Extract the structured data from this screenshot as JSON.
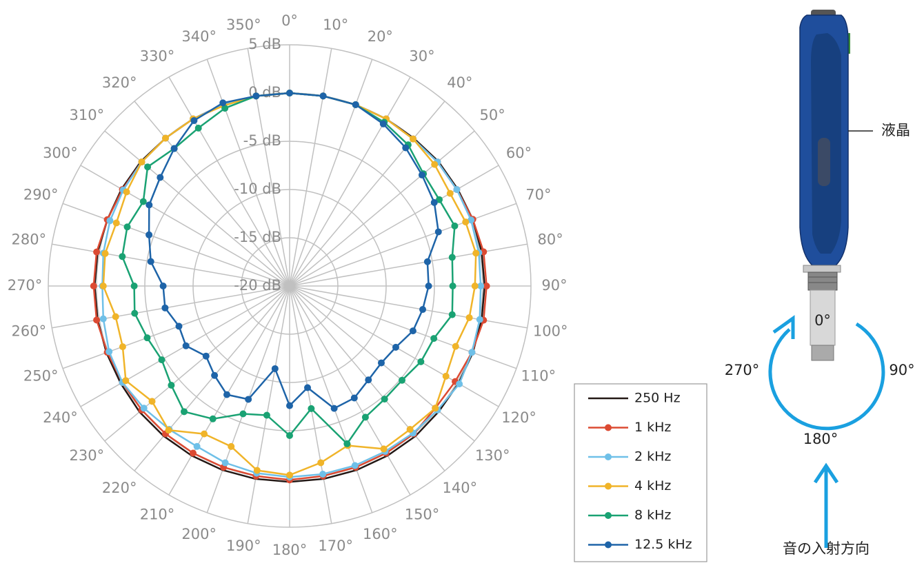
{
  "chart_data": {
    "type": "polar",
    "categories": [
      "0°",
      "10°",
      "20°",
      "30°",
      "40°",
      "50°",
      "60°",
      "70°",
      "80°",
      "90°",
      "100°",
      "110°",
      "120°",
      "130°",
      "140°",
      "150°",
      "160°",
      "170°",
      "180°",
      "190°",
      "200°",
      "210°",
      "220°",
      "230°",
      "240°",
      "250°",
      "260°",
      "270°",
      "280°",
      "290°",
      "300°",
      "310°",
      "320°",
      "330°",
      "340°",
      "350°"
    ],
    "x": [
      0,
      10,
      20,
      30,
      40,
      50,
      60,
      70,
      80,
      90,
      100,
      110,
      120,
      130,
      140,
      150,
      160,
      170,
      180,
      190,
      200,
      210,
      220,
      230,
      240,
      250,
      260,
      270,
      280,
      290,
      300,
      310,
      320,
      330,
      340,
      350
    ],
    "ylim": [
      -20,
      5
    ],
    "yticks": [
      {
        "value": 5,
        "label": "5 dB"
      },
      {
        "value": 0,
        "label": "0 dB"
      },
      {
        "value": -5,
        "label": "-5 dB"
      },
      {
        "value": -10,
        "label": "-10 dB"
      },
      {
        "value": -15,
        "label": "-15 dB"
      },
      {
        "value": -20,
        "label": "-20 dB"
      }
    ],
    "grid": true,
    "legend": "lower right",
    "series": [
      {
        "name": "250 Hz",
        "color": "#231815",
        "marker": false,
        "values": [
          0,
          0,
          0,
          0,
          0,
          0.1,
          0.1,
          0.2,
          0.2,
          0.2,
          0.2,
          0.2,
          0.2,
          0.2,
          0.3,
          0.3,
          0.3,
          0.3,
          0.3,
          0.3,
          0.3,
          0.3,
          0.3,
          0.3,
          0.2,
          0.2,
          0.2,
          0.2,
          0.2,
          0.1,
          0.1,
          0.1,
          0,
          0,
          0,
          0
        ]
      },
      {
        "name": "1 kHz",
        "color": "#dc4a32",
        "marker": true,
        "values": [
          0,
          0,
          0,
          0,
          -0.1,
          0,
          0,
          0.2,
          0.4,
          0.4,
          0.4,
          0.1,
          -0.2,
          -0.3,
          0,
          0,
          0,
          0,
          0.1,
          0,
          0,
          0,
          0,
          0,
          0,
          0.1,
          0.3,
          0.3,
          0.3,
          0.1,
          0,
          0,
          0,
          0,
          0,
          0
        ]
      },
      {
        "name": "2 kHz",
        "color": "#6fc0e8",
        "marker": true,
        "values": [
          0,
          0,
          0,
          0,
          -0.1,
          0,
          0,
          0,
          -0.1,
          -0.2,
          0,
          0.1,
          0.3,
          0,
          -0.1,
          -0.2,
          -0.2,
          -0.2,
          -0.2,
          -0.3,
          -0.5,
          -0.8,
          -0.6,
          -0.3,
          0,
          -0.1,
          -0.4,
          -0.6,
          -0.4,
          -0.2,
          -0.1,
          0,
          0,
          0,
          0,
          0
        ]
      },
      {
        "name": "4 kHz",
        "color": "#f0b429",
        "marker": true,
        "values": [
          0,
          0,
          0,
          0,
          -0.1,
          -0.4,
          -0.8,
          -0.6,
          -0.4,
          -0.8,
          -1.1,
          -1.7,
          -1.3,
          -0.3,
          -0.6,
          -0.5,
          -2.4,
          -1.4,
          -0.4,
          -0.6,
          -2.3,
          -2.3,
          -0.5,
          -1.4,
          -0.4,
          -1.6,
          -1.7,
          -0.7,
          -0.6,
          -0.9,
          -0.5,
          0,
          0,
          0,
          -0.1,
          0
        ]
      },
      {
        "name": "8 kHz",
        "color": "#1aa273",
        "marker": true,
        "values": [
          0,
          0,
          0,
          -0.4,
          -0.9,
          -1.9,
          -2.1,
          -1.8,
          -2.9,
          -3.1,
          -2.9,
          -4.1,
          -4.3,
          -4.8,
          -4.7,
          -4.3,
          -2.6,
          -7.1,
          -4.5,
          -6.4,
          -5.9,
          -4.1,
          -3,
          -4,
          -4.7,
          -4.3,
          -3.7,
          -3.9,
          -2.4,
          -2.1,
          -2.5,
          -0.8,
          -1.4,
          -1.1,
          -0.4,
          0
        ]
      },
      {
        "name": "12.5 kHz",
        "color": "#1e64a8",
        "marker": true,
        "values": [
          0,
          0,
          0,
          -0.6,
          -1.3,
          -2.1,
          -2.7,
          -3.6,
          -5.5,
          -5.6,
          -6,
          -6.4,
          -7.3,
          -7.6,
          -7.3,
          -6.6,
          -6.5,
          -9.3,
          -7.6,
          -11.3,
          -7.5,
          -7,
          -7.9,
          -8.7,
          -7.6,
          -7.8,
          -6.9,
          -6.9,
          -5.4,
          -4.5,
          -3.2,
          -2.5,
          -1.4,
          -0.2,
          0.2,
          0
        ]
      }
    ]
  },
  "diagram": {
    "callout": "液晶",
    "angles": [
      "0°",
      "90°",
      "180°",
      "270°"
    ],
    "caption": "音の入射方向"
  }
}
